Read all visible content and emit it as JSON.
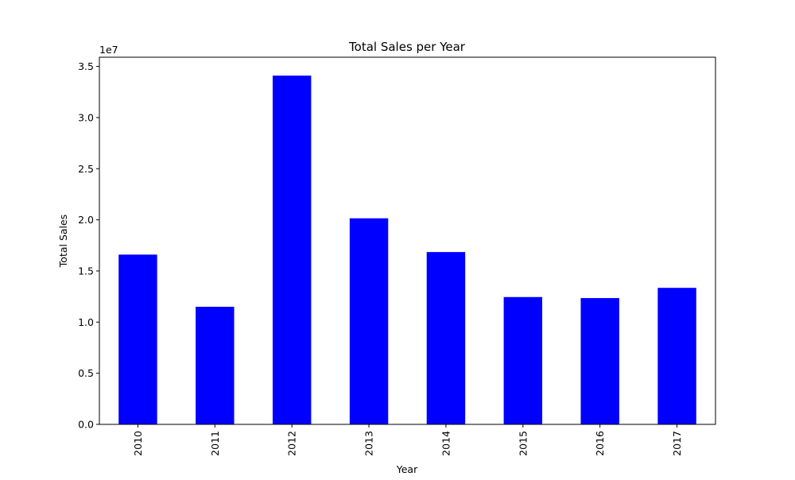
{
  "chart_data": {
    "type": "bar",
    "title": "Total Sales per Year",
    "xlabel": "Year",
    "ylabel": "Total Sales",
    "categories": [
      "2010",
      "2011",
      "2012",
      "2013",
      "2014",
      "2015",
      "2016",
      "2017"
    ],
    "values": [
      16600000,
      11500000,
      34100000,
      20150000,
      16850000,
      12450000,
      12350000,
      13350000
    ],
    "ylim": [
      0,
      35900000
    ],
    "yticks": [
      0,
      5000000,
      10000000,
      15000000,
      20000000,
      25000000,
      30000000,
      35000000
    ],
    "ytick_labels": [
      "0.0",
      "0.5",
      "1.0",
      "1.5",
      "2.0",
      "2.5",
      "3.0",
      "3.5"
    ],
    "y_offset_label": "1e7",
    "bar_color": "#0000ff",
    "grid": false,
    "legend": "none"
  }
}
